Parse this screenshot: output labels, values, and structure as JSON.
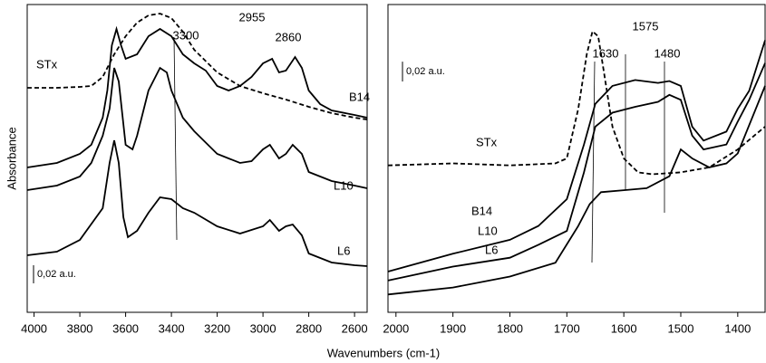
{
  "y_label": "Absorbance",
  "x_label": "Wavenumbers (cm-1)",
  "chart_data": [
    {
      "type": "line",
      "xlim": [
        4030,
        2545
      ],
      "xticks": [
        4000,
        3800,
        3600,
        3400,
        3200,
        3000,
        2800,
        2600
      ],
      "ylim": [
        0,
        0.34
      ],
      "scale_bar": {
        "value": 0.02,
        "label": "0,02 a.u."
      },
      "annotations": [
        "3300",
        "2955",
        "2860"
      ],
      "series": [
        {
          "name": "STx",
          "color": "#000000",
          "line_style": "dashed",
          "x": [
            4030,
            3900,
            3800,
            3750,
            3700,
            3650,
            3600,
            3550,
            3500,
            3450,
            3400,
            3350,
            3300,
            3200,
            3100,
            3000,
            2900,
            2800,
            2700,
            2600,
            2545
          ],
          "values": [
            0.248,
            0.248,
            0.249,
            0.25,
            0.26,
            0.285,
            0.305,
            0.32,
            0.328,
            0.33,
            0.325,
            0.31,
            0.29,
            0.265,
            0.25,
            0.242,
            0.235,
            0.227,
            0.22,
            0.215,
            0.213
          ]
        },
        {
          "name": "B14",
          "color": "#000000",
          "line_style": "solid",
          "x": [
            4030,
            3900,
            3800,
            3750,
            3700,
            3680,
            3660,
            3640,
            3620,
            3600,
            3550,
            3500,
            3450,
            3400,
            3350,
            3300,
            3250,
            3200,
            3150,
            3100,
            3050,
            3000,
            2960,
            2930,
            2900,
            2860,
            2830,
            2800,
            2750,
            2700,
            2600,
            2545
          ],
          "values": [
            0.16,
            0.165,
            0.175,
            0.185,
            0.215,
            0.245,
            0.295,
            0.313,
            0.295,
            0.28,
            0.285,
            0.305,
            0.313,
            0.305,
            0.285,
            0.275,
            0.267,
            0.25,
            0.245,
            0.25,
            0.26,
            0.275,
            0.28,
            0.265,
            0.267,
            0.282,
            0.27,
            0.245,
            0.23,
            0.223,
            0.218,
            0.215
          ]
        },
        {
          "name": "L10",
          "color": "#000000",
          "line_style": "solid",
          "x": [
            4030,
            3900,
            3800,
            3750,
            3700,
            3670,
            3650,
            3630,
            3600,
            3570,
            3550,
            3500,
            3450,
            3420,
            3400,
            3350,
            3300,
            3200,
            3100,
            3050,
            3000,
            2970,
            2930,
            2900,
            2870,
            2830,
            2800,
            2700,
            2600,
            2545
          ],
          "values": [
            0.135,
            0.14,
            0.15,
            0.165,
            0.195,
            0.225,
            0.27,
            0.255,
            0.185,
            0.18,
            0.195,
            0.245,
            0.27,
            0.265,
            0.245,
            0.215,
            0.2,
            0.175,
            0.165,
            0.167,
            0.18,
            0.185,
            0.17,
            0.175,
            0.185,
            0.175,
            0.155,
            0.145,
            0.14,
            0.137
          ]
        },
        {
          "name": "L6",
          "color": "#000000",
          "line_style": "solid",
          "x": [
            4030,
            3900,
            3800,
            3700,
            3670,
            3650,
            3630,
            3610,
            3590,
            3550,
            3500,
            3450,
            3400,
            3350,
            3300,
            3200,
            3100,
            3000,
            2970,
            2930,
            2900,
            2870,
            2830,
            2800,
            2700,
            2600,
            2545
          ],
          "values": [
            0.063,
            0.067,
            0.08,
            0.115,
            0.165,
            0.19,
            0.165,
            0.105,
            0.083,
            0.09,
            0.11,
            0.127,
            0.125,
            0.115,
            0.11,
            0.095,
            0.087,
            0.095,
            0.102,
            0.09,
            0.095,
            0.097,
            0.085,
            0.065,
            0.055,
            0.052,
            0.051
          ]
        }
      ]
    },
    {
      "type": "line",
      "xlim": [
        2014,
        1352
      ],
      "xticks": [
        2000,
        1900,
        1800,
        1700,
        1600,
        1500,
        1400
      ],
      "ylim": [
        0,
        0.31
      ],
      "scale_bar": {
        "value": 0.02,
        "label": "0,02 a.u."
      },
      "annotations": [
        "1575",
        "1630",
        "1480"
      ],
      "series": [
        {
          "name": "STx",
          "color": "#000000",
          "line_style": "dashed",
          "x": [
            2014,
            1900,
            1800,
            1720,
            1700,
            1680,
            1665,
            1655,
            1645,
            1635,
            1620,
            1600,
            1575,
            1550,
            1500,
            1450,
            1400,
            1352
          ],
          "values": [
            0.148,
            0.15,
            0.148,
            0.15,
            0.155,
            0.205,
            0.26,
            0.283,
            0.278,
            0.242,
            0.187,
            0.155,
            0.141,
            0.139,
            0.141,
            0.146,
            0.164,
            0.187
          ]
        },
        {
          "name": "B14",
          "color": "#000000",
          "line_style": "solid",
          "x": [
            2014,
            1900,
            1800,
            1750,
            1700,
            1670,
            1650,
            1620,
            1580,
            1540,
            1520,
            1500,
            1480,
            1460,
            1420,
            1400,
            1380,
            1352
          ],
          "values": [
            0.041,
            0.059,
            0.073,
            0.087,
            0.114,
            0.169,
            0.21,
            0.228,
            0.234,
            0.231,
            0.233,
            0.228,
            0.187,
            0.173,
            0.182,
            0.205,
            0.223,
            0.274
          ]
        },
        {
          "name": "L10",
          "color": "#000000",
          "line_style": "solid",
          "x": [
            2014,
            1900,
            1800,
            1750,
            1700,
            1670,
            1650,
            1620,
            1580,
            1540,
            1520,
            1500,
            1480,
            1460,
            1420,
            1400,
            1380,
            1352
          ],
          "values": [
            0.032,
            0.046,
            0.055,
            0.068,
            0.082,
            0.141,
            0.187,
            0.201,
            0.207,
            0.212,
            0.219,
            0.214,
            0.178,
            0.164,
            0.169,
            0.192,
            0.214,
            0.251
          ]
        },
        {
          "name": "L6",
          "color": "#000000",
          "line_style": "solid",
          "x": [
            2014,
            1900,
            1800,
            1720,
            1680,
            1660,
            1640,
            1600,
            1560,
            1520,
            1500,
            1480,
            1450,
            1420,
            1400,
            1352
          ],
          "values": [
            0.018,
            0.025,
            0.036,
            0.05,
            0.087,
            0.109,
            0.121,
            0.123,
            0.125,
            0.137,
            0.164,
            0.155,
            0.146,
            0.15,
            0.16,
            0.228
          ]
        }
      ]
    }
  ]
}
